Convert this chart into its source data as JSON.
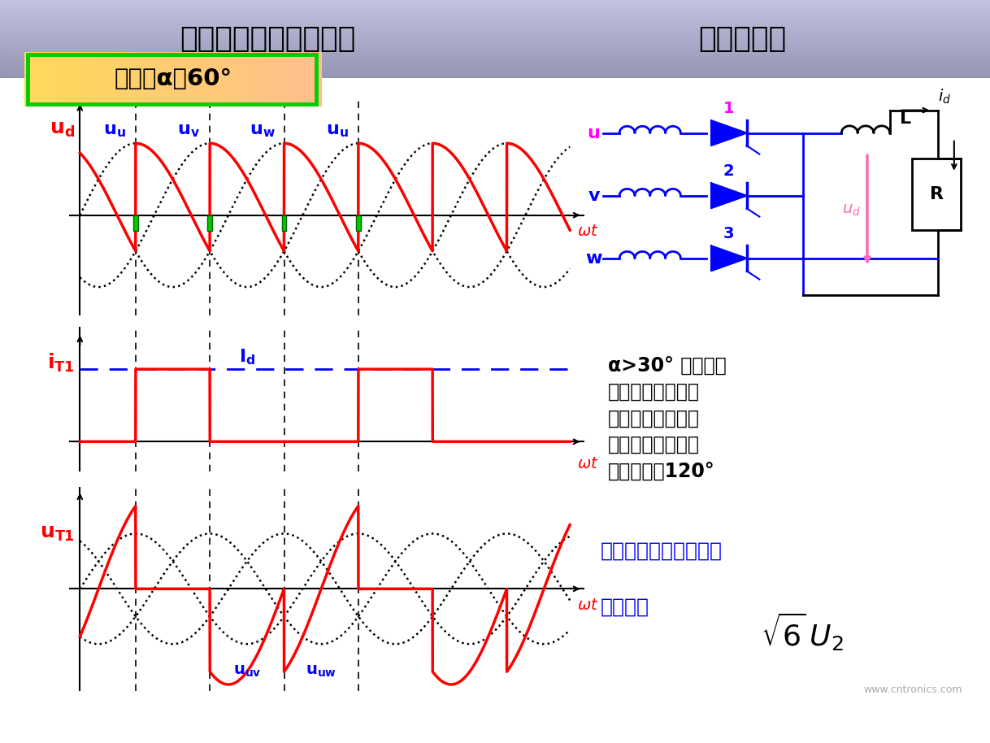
{
  "title_left": "三相半波可控整流电路",
  "title_right": "电感性负载",
  "alpha_label": "控制角α＝60°",
  "annotation_text": "α>30° 时，电压\n波形出现负値，波\n形连续，输出电压\n平均値下降，晶闸\n管导通角为120°",
  "formula_line1": "晶闸管承受的最大正反",
  "formula_line2": "向压降为",
  "background_color": "#ffffff",
  "header_color_left": "#9999bb",
  "header_color_right": "#aaaacc",
  "alpha_deg": 60,
  "sine_amp": 1.0,
  "ud_color": "#ff0000",
  "blue_color": "#0000ff",
  "black_color": "#000000",
  "green_color": "#00cc00",
  "magenta_color": "#ff00ff",
  "gate_color": "#00aa00",
  "text_box_bg": "#ffffcc",
  "text_box_border": "#00aa00"
}
